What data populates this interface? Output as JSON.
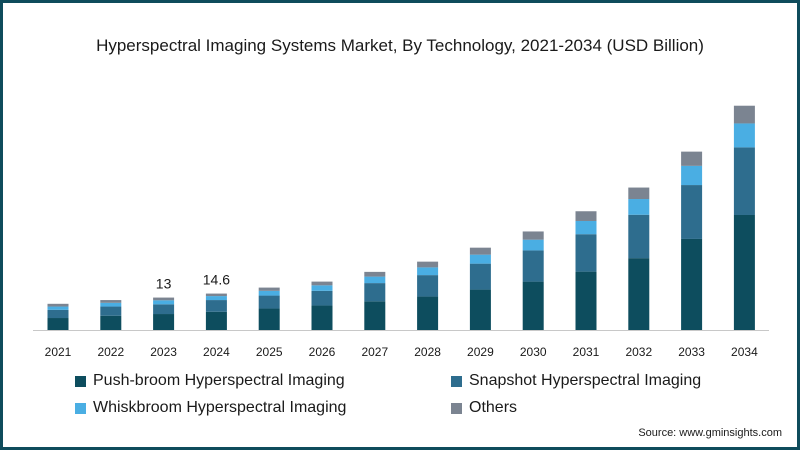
{
  "chart_data": {
    "type": "bar",
    "stacked": true,
    "title": "Hyperspectral Imaging Systems Market, By Technology, 2021-2034 (USD Billion)",
    "xlabel": "",
    "ylabel": "",
    "categories": [
      "2021",
      "2022",
      "2023",
      "2024",
      "2025",
      "2026",
      "2027",
      "2028",
      "2029",
      "2030",
      "2031",
      "2032",
      "2033",
      "2034"
    ],
    "series": [
      {
        "name": "Push-broom Hyperspectral Imaging",
        "color": "#0d4d5e",
        "values": [
          4.8,
          5.7,
          6.4,
          7.3,
          8.6,
          9.8,
          11.5,
          13.4,
          16.2,
          19.4,
          23.4,
          28.8,
          36.5,
          46.1
        ]
      },
      {
        "name": "Snapshot Hyperspectral Imaging",
        "color": "#2e6d8e",
        "values": [
          3.3,
          3.7,
          3.9,
          4.7,
          5.2,
          5.9,
          7.3,
          8.6,
          10.4,
          12.5,
          15.0,
          17.4,
          21.6,
          27.1
        ]
      },
      {
        "name": "Whiskbroom Hyperspectral Imaging",
        "color": "#4aaee3",
        "values": [
          1.3,
          1.5,
          1.6,
          1.6,
          1.9,
          2.2,
          2.6,
          3.1,
          3.6,
          4.3,
          5.3,
          6.3,
          7.7,
          9.6
        ]
      },
      {
        "name": "Others",
        "color": "#7b8491",
        "values": [
          1.1,
          1.1,
          1.1,
          1.0,
          1.3,
          1.5,
          1.9,
          2.3,
          2.8,
          3.3,
          3.9,
          4.6,
          5.7,
          7.1
        ]
      }
    ],
    "data_labels": [
      {
        "category": "2023",
        "text": "13"
      },
      {
        "category": "2024",
        "text": "14.6"
      }
    ],
    "ylim": [
      0,
      95
    ],
    "grid": false,
    "legend": "bottom"
  },
  "source": "Source: www.gminsights.com"
}
